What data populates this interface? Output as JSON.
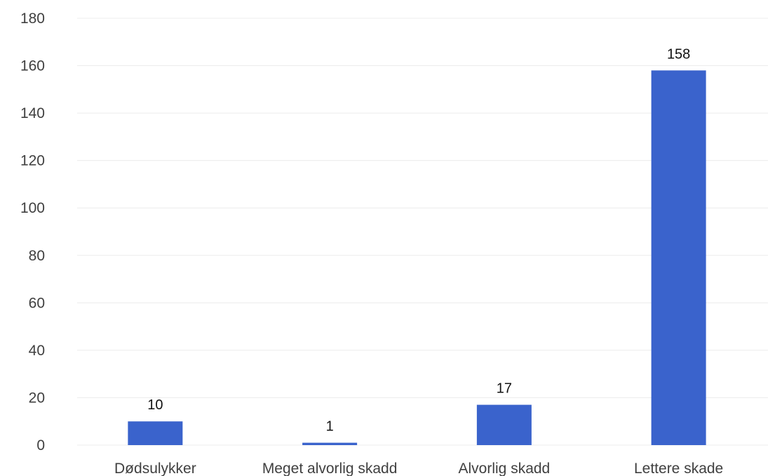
{
  "chart_data": {
    "type": "bar",
    "title": "",
    "xlabel": "",
    "ylabel": "",
    "categories": [
      "Dødsulykker",
      "Meget alvorlig skadd",
      "Alvorlig skadd",
      "Lettere skade"
    ],
    "values": [
      10,
      1,
      17,
      158
    ],
    "data_labels": [
      "10",
      "1",
      "17",
      "158"
    ],
    "ylim": [
      0,
      180
    ],
    "yticks": [
      0,
      20,
      40,
      60,
      80,
      100,
      120,
      140,
      160,
      180
    ],
    "grid": true,
    "legend": "none",
    "bar_color": "#3a63cc"
  }
}
